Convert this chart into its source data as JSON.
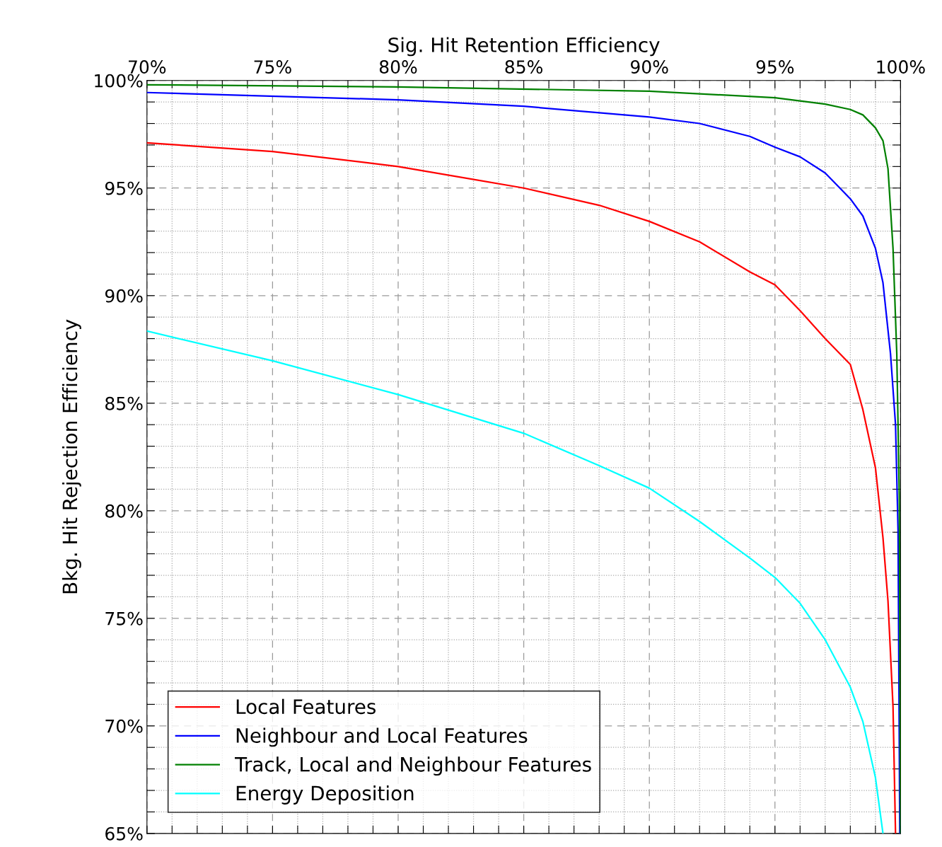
{
  "chart_data": {
    "type": "line",
    "xlabel": "Sig. Hit Retention Efficiency",
    "ylabel": "Bkg. Hit Rejection Efficiency",
    "xlim": [
      70,
      100
    ],
    "ylim": [
      65,
      100
    ],
    "xticks": [
      {
        "value": 70,
        "label": "70%"
      },
      {
        "value": 71,
        "label": null
      },
      {
        "value": 72,
        "label": null
      },
      {
        "value": 73,
        "label": null
      },
      {
        "value": 74,
        "label": null
      },
      {
        "value": 75,
        "label": "75%"
      },
      {
        "value": 76,
        "label": null
      },
      {
        "value": 77,
        "label": null
      },
      {
        "value": 78,
        "label": null
      },
      {
        "value": 79,
        "label": null
      },
      {
        "value": 80,
        "label": "80%"
      },
      {
        "value": 81,
        "label": null
      },
      {
        "value": 82,
        "label": null
      },
      {
        "value": 83,
        "label": null
      },
      {
        "value": 84,
        "label": null
      },
      {
        "value": 85,
        "label": "85%"
      },
      {
        "value": 86,
        "label": null
      },
      {
        "value": 87,
        "label": null
      },
      {
        "value": 88,
        "label": null
      },
      {
        "value": 89,
        "label": null
      },
      {
        "value": 90,
        "label": "90%"
      },
      {
        "value": 91,
        "label": null
      },
      {
        "value": 92,
        "label": null
      },
      {
        "value": 93,
        "label": null
      },
      {
        "value": 94,
        "label": null
      },
      {
        "value": 95,
        "label": "95%"
      },
      {
        "value": 96,
        "label": null
      },
      {
        "value": 97,
        "label": null
      },
      {
        "value": 98,
        "label": null
      },
      {
        "value": 99,
        "label": null
      },
      {
        "value": 100,
        "label": "100%"
      }
    ],
    "yticks": [
      {
        "value": 65,
        "label": "65%"
      },
      {
        "value": 66,
        "label": null
      },
      {
        "value": 67,
        "label": null
      },
      {
        "value": 68,
        "label": null
      },
      {
        "value": 69,
        "label": null
      },
      {
        "value": 70,
        "label": "70%"
      },
      {
        "value": 71,
        "label": null
      },
      {
        "value": 72,
        "label": null
      },
      {
        "value": 73,
        "label": null
      },
      {
        "value": 74,
        "label": null
      },
      {
        "value": 75,
        "label": "75%"
      },
      {
        "value": 76,
        "label": null
      },
      {
        "value": 77,
        "label": null
      },
      {
        "value": 78,
        "label": null
      },
      {
        "value": 79,
        "label": null
      },
      {
        "value": 80,
        "label": "80%"
      },
      {
        "value": 81,
        "label": null
      },
      {
        "value": 82,
        "label": null
      },
      {
        "value": 83,
        "label": null
      },
      {
        "value": 84,
        "label": null
      },
      {
        "value": 85,
        "label": "85%"
      },
      {
        "value": 86,
        "label": null
      },
      {
        "value": 87,
        "label": null
      },
      {
        "value": 88,
        "label": null
      },
      {
        "value": 89,
        "label": null
      },
      {
        "value": 90,
        "label": "90%"
      },
      {
        "value": 91,
        "label": null
      },
      {
        "value": 92,
        "label": null
      },
      {
        "value": 93,
        "label": null
      },
      {
        "value": 94,
        "label": null
      },
      {
        "value": 95,
        "label": "95%"
      },
      {
        "value": 96,
        "label": null
      },
      {
        "value": 97,
        "label": null
      },
      {
        "value": 98,
        "label": null
      },
      {
        "value": 99,
        "label": null
      },
      {
        "value": 100,
        "label": "100%"
      }
    ],
    "grid": true,
    "legend": "bottom left",
    "marker": "none",
    "line_style": "solid",
    "series": [
      {
        "name": "Local Features",
        "color": "#ff0000",
        "x": [
          70,
          75,
          80,
          85,
          88,
          90,
          92,
          94,
          95,
          96,
          97,
          98,
          98.5,
          99,
          99.3,
          99.5,
          99.7,
          99.8
        ],
        "values": [
          97.1,
          96.7,
          96.0,
          95.0,
          94.2,
          93.45,
          92.5,
          91.1,
          90.5,
          89.3,
          88.0,
          86.8,
          84.7,
          82.0,
          78.75,
          75.8,
          70.9,
          65
        ]
      },
      {
        "name": "Neighbour and Local Features",
        "color": "#0000ff",
        "x": [
          70,
          80,
          85,
          90,
          92,
          94,
          95,
          96,
          97,
          98,
          98.5,
          99,
          99.3,
          99.6,
          99.8,
          99.9,
          99.97
        ],
        "values": [
          99.44,
          99.1,
          98.8,
          98.3,
          98.0,
          97.4,
          96.9,
          96.45,
          95.7,
          94.5,
          93.7,
          92.2,
          90.6,
          87.3,
          84.0,
          79.1,
          65
        ]
      },
      {
        "name": "Track, Local and Neighbour Features",
        "color": "#008000",
        "x": [
          70,
          80,
          90,
          95,
          97,
          98,
          98.5,
          99,
          99.3,
          99.5,
          99.7,
          99.85,
          99.95,
          100
        ],
        "values": [
          99.8,
          99.7,
          99.5,
          99.2,
          98.9,
          98.65,
          98.4,
          97.8,
          97.2,
          95.9,
          92.2,
          87.3,
          80.7,
          65
        ]
      },
      {
        "name": "Energy Deposition",
        "color": "#00ffff",
        "x": [
          70,
          75,
          80,
          85,
          88,
          90,
          92,
          94,
          95,
          96,
          97,
          98,
          98.5,
          99,
          99.3
        ],
        "values": [
          88.35,
          86.97,
          85.4,
          83.6,
          82.1,
          81.05,
          79.5,
          77.8,
          76.9,
          75.7,
          74.0,
          71.8,
          70.2,
          67.6,
          65
        ]
      }
    ]
  }
}
